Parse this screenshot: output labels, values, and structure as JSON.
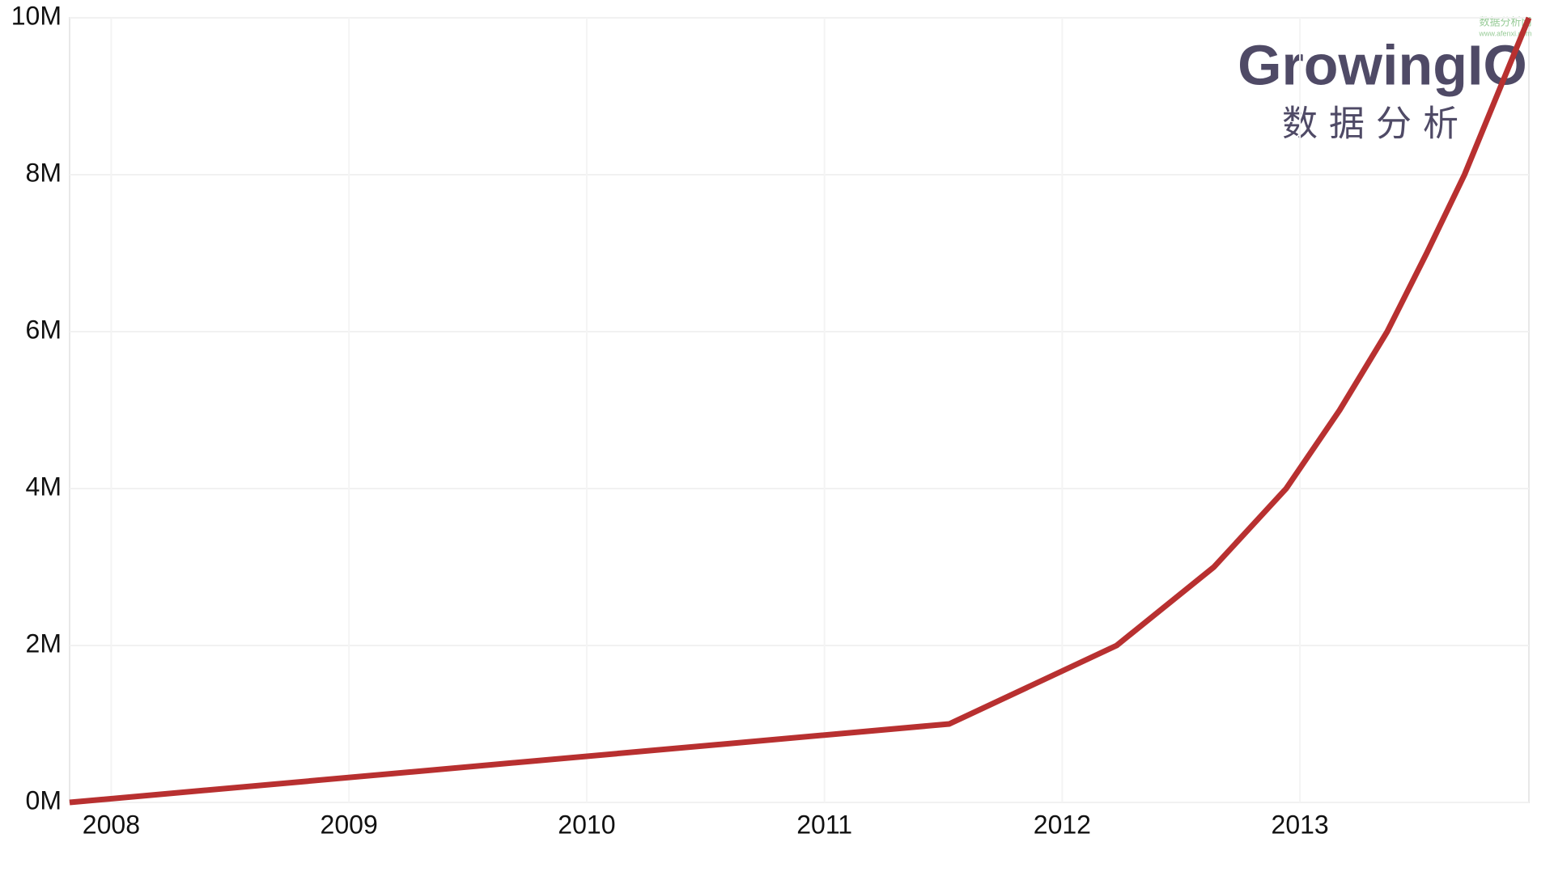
{
  "chart_data": {
    "type": "line",
    "x": [
      2007.825,
      2011.525,
      2012.229,
      2012.638,
      2012.942,
      2013.167,
      2013.367,
      2013.533,
      2013.692,
      2013.963
    ],
    "series": [
      {
        "color": "#b83030",
        "values": [
          0,
          1000000,
          2000000,
          3000000,
          4000000,
          5000000,
          6000000,
          7000000,
          8000000,
          10000000
        ]
      }
    ],
    "xlim": [
      2007.825,
      2013.963
    ],
    "xticks": [
      2008,
      2009,
      2010,
      2011,
      2012,
      2013
    ],
    "ylim": [
      0,
      10000000
    ],
    "yticks": [
      {
        "value": 0,
        "label": "0M"
      },
      {
        "value": 2000000,
        "label": "2M"
      },
      {
        "value": 4000000,
        "label": "4M"
      },
      {
        "value": 6000000,
        "label": "6M"
      },
      {
        "value": 8000000,
        "label": "8M"
      },
      {
        "value": 10000000,
        "label": "10M"
      }
    ],
    "grid": true
  },
  "logo": {
    "brand": "GrowingIO",
    "subtitle": "数据分析",
    "watermark": "数据分析网",
    "watermark_url": "www.afenxi.com"
  }
}
